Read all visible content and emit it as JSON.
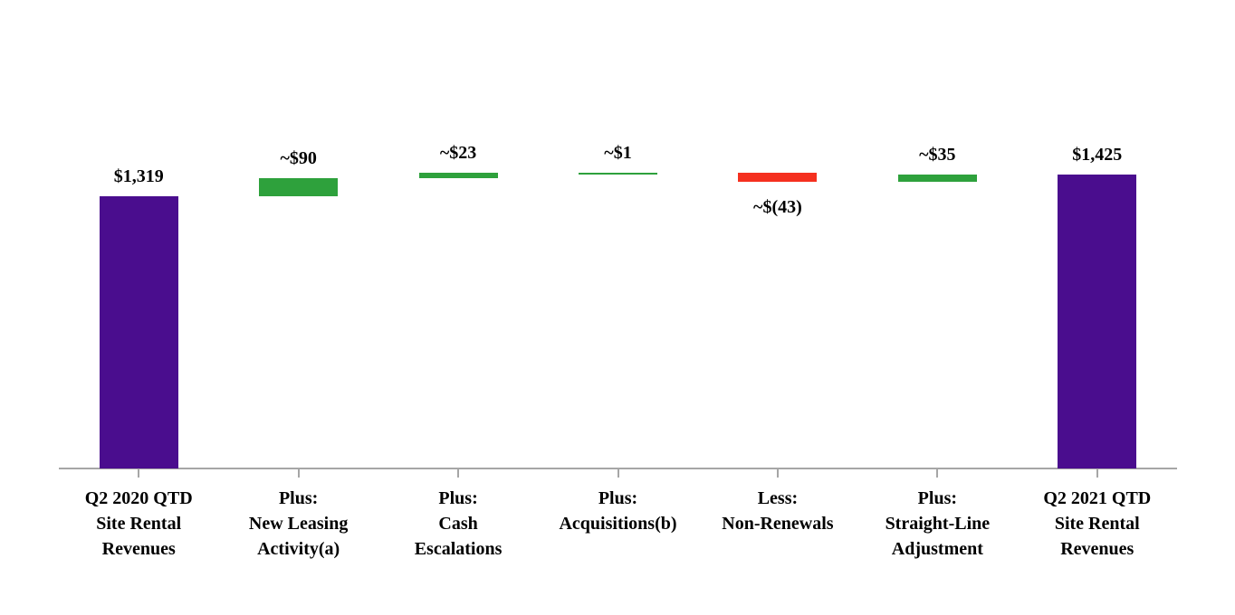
{
  "chart_data": {
    "type": "waterfall",
    "title": "",
    "xlabel": "",
    "ylabel": "",
    "gridlines": false,
    "legend": "none",
    "axis_range_implied": [
      0,
      1500
    ],
    "colors": {
      "total": "#4A0D8E",
      "increase": "#2EA13C",
      "decrease": "#F5301F",
      "axis": "#A6A6A6",
      "label_text": "#000000"
    },
    "bars": [
      {
        "id": "q2-2020-qtd-site-rental-revenues",
        "category_lines": [
          "Q2 2020 QTD",
          "Site Rental",
          "Revenues"
        ],
        "kind": "total",
        "value": 1319,
        "label": "$1,319",
        "color": "total",
        "label_position": "above"
      },
      {
        "id": "new-leasing-activity",
        "category_lines": [
          "Plus:",
          "New Leasing",
          "Activity(a)"
        ],
        "kind": "delta",
        "value": 90,
        "label": "~$90",
        "color": "increase",
        "label_position": "above"
      },
      {
        "id": "cash-escalations",
        "category_lines": [
          "Plus:",
          "Cash",
          "Escalations"
        ],
        "kind": "delta",
        "value": 23,
        "label": "~$23",
        "color": "increase",
        "label_position": "above"
      },
      {
        "id": "acquisitions",
        "category_lines": [
          "Plus:",
          "Acquisitions(b)"
        ],
        "kind": "delta",
        "value": 1,
        "label": "~$1",
        "color": "increase",
        "label_position": "above"
      },
      {
        "id": "non-renewals",
        "category_lines": [
          "Less:",
          "Non-Renewals"
        ],
        "kind": "delta",
        "value": -43,
        "label": "~$(43)",
        "color": "decrease",
        "label_position": "below"
      },
      {
        "id": "straight-line-adjustment",
        "category_lines": [
          "Plus:",
          "Straight-Line",
          "Adjustment"
        ],
        "kind": "delta",
        "value": 35,
        "label": "~$35",
        "color": "increase",
        "label_position": "above"
      },
      {
        "id": "q2-2021-qtd-site-rental-revenues",
        "category_lines": [
          "Q2 2021 QTD",
          "Site Rental",
          "Revenues"
        ],
        "kind": "total",
        "value": 1425,
        "label": "$1,425",
        "color": "total",
        "label_position": "above"
      }
    ]
  }
}
